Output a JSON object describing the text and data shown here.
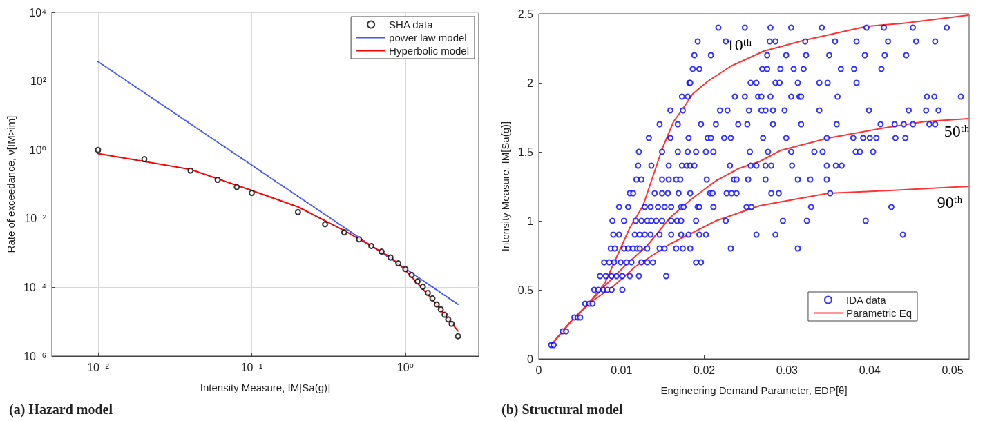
{
  "chart_data": [
    {
      "type": "scatter",
      "title": "(a) Hazard model",
      "xlabel": "Intensity Measure, IM[Sa(g)]",
      "ylabel": "Rate of exceedance, ν[IM>im]",
      "log": "xy",
      "grid": true,
      "legend": "top right",
      "xlim": [
        0.005,
        3
      ],
      "xticks": [
        {
          "value": 0.01,
          "label": "10⁻²"
        },
        {
          "value": 0.1,
          "label": "10⁻¹"
        },
        {
          "value": 1,
          "label": "10⁰"
        }
      ],
      "ylim": [
        1e-06,
        10000
      ],
      "yticks": [
        {
          "value": 1e-06,
          "label": "10⁻⁶"
        },
        {
          "value": 0.0001,
          "label": "10⁻⁴"
        },
        {
          "value": 0.01,
          "label": "10⁻²"
        },
        {
          "value": 1,
          "label": "10⁰"
        },
        {
          "value": 100,
          "label": "10²"
        },
        {
          "value": 10000,
          "label": "10⁴"
        }
      ],
      "series": [
        {
          "name": "SHA data",
          "marker": "circle",
          "color": "#000000",
          "x": [
            0.01,
            0.02,
            0.04,
            0.06,
            0.08,
            0.1,
            0.2,
            0.3,
            0.4,
            0.5,
            0.6,
            0.7,
            0.8,
            0.9,
            1.0,
            1.1,
            1.2,
            1.3,
            1.4,
            1.5,
            1.6,
            1.7,
            1.8,
            1.9,
            2.0,
            2.2
          ],
          "values": [
            1.0,
            0.54,
            0.25,
            0.135,
            0.083,
            0.056,
            0.0155,
            0.0069,
            0.004,
            0.0025,
            0.0016,
            0.0011,
            0.00074,
            0.0005,
            0.00034,
            0.00023,
            0.00015,
            0.000105,
            6.9e-05,
            4.8e-05,
            3.2e-05,
            2.3e-05,
            1.6e-05,
            1.17e-05,
            8.7e-06,
            3.8e-06
          ]
        },
        {
          "name": "power law model",
          "type": "line",
          "marker": "none",
          "line_style": "dotted",
          "color": "#4455ff",
          "x": [
            0.01,
            0.1,
            1,
            2.2
          ],
          "values": [
            370,
            0.36,
            0.00035,
            3.2e-05
          ]
        },
        {
          "name": "Hyperbolic model",
          "type": "line",
          "marker": "none",
          "line_style": "solid",
          "color": "#ff0000",
          "x": [
            0.01,
            0.04,
            0.1,
            0.2,
            0.4,
            0.6,
            0.8,
            1.0,
            1.5,
            2.2
          ],
          "values": [
            0.78,
            0.27,
            0.066,
            0.022,
            0.0045,
            0.0016,
            0.00076,
            0.00032,
            4.4e-05,
            5.4e-06
          ]
        }
      ]
    },
    {
      "type": "scatter",
      "title": "(b) Structural model",
      "xlabel": "Engineering Demand Parameter, EDP[θ]",
      "ylabel": "Intensity Measure, IM[Sa(g)]",
      "grid": false,
      "legend": "bottom right",
      "xlim": [
        0,
        0.052
      ],
      "xticks": [
        0,
        0.01,
        0.02,
        0.03,
        0.04,
        0.05
      ],
      "ylim": [
        0,
        2.5
      ],
      "yticks": [
        0,
        0.5,
        1,
        1.5,
        2,
        2.5
      ],
      "annotations": [
        "10ᵗʰ",
        "50ᵗʰ",
        "90ᵗʰ"
      ],
      "series": [
        {
          "name": "IDA data",
          "marker": "circle",
          "color": "#0000ff",
          "x": [
            0.0217,
            0.0249,
            0.028,
            0.0305,
            0.0342,
            0.0396,
            0.0417,
            0.0452,
            0.0493,
            0.0192,
            0.0226,
            0.0279,
            0.0286,
            0.0322,
            0.0358,
            0.0384,
            0.0422,
            0.0456,
            0.0479,
            0.0188,
            0.0208,
            0.0276,
            0.0299,
            0.0323,
            0.0351,
            0.0394,
            0.0418,
            0.0444,
            0.0186,
            0.0194,
            0.027,
            0.0276,
            0.0292,
            0.0308,
            0.032,
            0.0365,
            0.0381,
            0.0414,
            0.0182,
            0.0183,
            0.0256,
            0.0263,
            0.0286,
            0.0291,
            0.0313,
            0.0339,
            0.0349,
            0.0384,
            0.0173,
            0.018,
            0.0237,
            0.0249,
            0.0265,
            0.0269,
            0.028,
            0.0305,
            0.0315,
            0.0317,
            0.0361,
            0.0469,
            0.0478,
            0.051,
            0.0159,
            0.0174,
            0.0219,
            0.0228,
            0.0254,
            0.0269,
            0.0274,
            0.0283,
            0.0297,
            0.0339,
            0.0399,
            0.0447,
            0.0468,
            0.0483,
            0.0146,
            0.0168,
            0.0196,
            0.0214,
            0.0241,
            0.0252,
            0.0283,
            0.0317,
            0.036,
            0.0413,
            0.043,
            0.0441,
            0.0452,
            0.0472,
            0.0479,
            0.0133,
            0.0159,
            0.0181,
            0.0204,
            0.0208,
            0.0224,
            0.0232,
            0.0271,
            0.0299,
            0.0348,
            0.038,
            0.0392,
            0.04,
            0.0408,
            0.0431,
            0.0443,
            0.0121,
            0.0149,
            0.0168,
            0.018,
            0.019,
            0.0202,
            0.0211,
            0.0255,
            0.0277,
            0.0305,
            0.0333,
            0.0343,
            0.0383,
            0.0388,
            0.0404,
            0.012,
            0.0136,
            0.0157,
            0.0173,
            0.0179,
            0.0183,
            0.0188,
            0.0231,
            0.0256,
            0.0263,
            0.0274,
            0.0281,
            0.0306,
            0.0348,
            0.0359,
            0.0366,
            0.0118,
            0.0124,
            0.0149,
            0.0157,
            0.0166,
            0.0171,
            0.0203,
            0.0236,
            0.0239,
            0.0253,
            0.0274,
            0.0313,
            0.0328,
            0.0348,
            0.011,
            0.0114,
            0.014,
            0.0149,
            0.0156,
            0.0169,
            0.0183,
            0.0207,
            0.021,
            0.0227,
            0.0233,
            0.0239,
            0.0281,
            0.029,
            0.0352,
            0.0097,
            0.0108,
            0.0128,
            0.0135,
            0.0144,
            0.0152,
            0.016,
            0.0172,
            0.0175,
            0.0192,
            0.0194,
            0.0211,
            0.0251,
            0.0257,
            0.0329,
            0.0426,
            0.0089,
            0.0103,
            0.0117,
            0.0124,
            0.0131,
            0.0136,
            0.0142,
            0.0149,
            0.016,
            0.0167,
            0.0172,
            0.019,
            0.0226,
            0.0295,
            0.0324,
            0.0395,
            0.009,
            0.0097,
            0.0116,
            0.0122,
            0.0128,
            0.0135,
            0.0146,
            0.016,
            0.0172,
            0.0181,
            0.0194,
            0.0202,
            0.0263,
            0.0286,
            0.044,
            0.0087,
            0.0092,
            0.0103,
            0.0108,
            0.0114,
            0.0119,
            0.0122,
            0.0131,
            0.0146,
            0.0152,
            0.0166,
            0.0174,
            0.0183,
            0.0232,
            0.0313,
            0.0079,
            0.0085,
            0.0091,
            0.0099,
            0.0106,
            0.0112,
            0.0124,
            0.0131,
            0.0138,
            0.019,
            0.0196,
            0.0074,
            0.0081,
            0.0088,
            0.0094,
            0.0101,
            0.011,
            0.0121,
            0.0154,
            0.0067,
            0.0072,
            0.0078,
            0.0083,
            0.0088,
            0.0101,
            0.0056,
            0.0061,
            0.0065,
            0.0043,
            0.0047,
            0.005,
            0.0029,
            0.0033,
            0.0015,
            0.0018
          ],
          "values": [
            2.4,
            2.4,
            2.4,
            2.4,
            2.4,
            2.4,
            2.4,
            2.4,
            2.4,
            2.3,
            2.3,
            2.3,
            2.3,
            2.3,
            2.3,
            2.3,
            2.3,
            2.3,
            2.3,
            2.2,
            2.2,
            2.2,
            2.2,
            2.2,
            2.2,
            2.2,
            2.2,
            2.2,
            2.1,
            2.1,
            2.1,
            2.1,
            2.1,
            2.1,
            2.1,
            2.1,
            2.1,
            2.1,
            2.0,
            2.0,
            2.0,
            2.0,
            2.0,
            2.0,
            2.0,
            2.0,
            2.0,
            2.0,
            1.9,
            1.9,
            1.9,
            1.9,
            1.9,
            1.9,
            1.9,
            1.9,
            1.9,
            1.9,
            1.9,
            1.9,
            1.9,
            1.9,
            1.8,
            1.8,
            1.8,
            1.8,
            1.8,
            1.8,
            1.8,
            1.8,
            1.8,
            1.8,
            1.8,
            1.8,
            1.8,
            1.8,
            1.7,
            1.7,
            1.7,
            1.7,
            1.7,
            1.7,
            1.7,
            1.7,
            1.7,
            1.7,
            1.7,
            1.7,
            1.7,
            1.7,
            1.7,
            1.6,
            1.6,
            1.6,
            1.6,
            1.6,
            1.6,
            1.6,
            1.6,
            1.6,
            1.6,
            1.6,
            1.6,
            1.6,
            1.6,
            1.6,
            1.6,
            1.5,
            1.5,
            1.5,
            1.5,
            1.5,
            1.5,
            1.5,
            1.5,
            1.5,
            1.5,
            1.5,
            1.5,
            1.5,
            1.5,
            1.5,
            1.4,
            1.4,
            1.4,
            1.4,
            1.4,
            1.4,
            1.4,
            1.4,
            1.4,
            1.4,
            1.4,
            1.4,
            1.4,
            1.4,
            1.4,
            1.4,
            1.3,
            1.3,
            1.3,
            1.3,
            1.3,
            1.3,
            1.3,
            1.3,
            1.3,
            1.3,
            1.3,
            1.3,
            1.3,
            1.3,
            1.2,
            1.2,
            1.2,
            1.2,
            1.2,
            1.2,
            1.2,
            1.2,
            1.2,
            1.2,
            1.2,
            1.2,
            1.2,
            1.2,
            1.2,
            1.1,
            1.1,
            1.1,
            1.1,
            1.1,
            1.1,
            1.1,
            1.1,
            1.1,
            1.1,
            1.1,
            1.1,
            1.1,
            1.1,
            1.1,
            1.1,
            1.0,
            1.0,
            1.0,
            1.0,
            1.0,
            1.0,
            1.0,
            1.0,
            1.0,
            1.0,
            1.0,
            1.0,
            1.0,
            1.0,
            1.0,
            1.0,
            0.9,
            0.9,
            0.9,
            0.9,
            0.9,
            0.9,
            0.9,
            0.9,
            0.9,
            0.9,
            0.9,
            0.9,
            0.9,
            0.9,
            0.9,
            0.8,
            0.8,
            0.8,
            0.8,
            0.8,
            0.8,
            0.8,
            0.8,
            0.8,
            0.8,
            0.8,
            0.8,
            0.8,
            0.8,
            0.8,
            0.7,
            0.7,
            0.7,
            0.7,
            0.7,
            0.7,
            0.7,
            0.7,
            0.7,
            0.7,
            0.7,
            0.6,
            0.6,
            0.6,
            0.6,
            0.6,
            0.6,
            0.6,
            0.6,
            0.5,
            0.5,
            0.5,
            0.5,
            0.5,
            0.5,
            0.4,
            0.4,
            0.4,
            0.3,
            0.3,
            0.3,
            0.2,
            0.2,
            0.1,
            0.1
          ]
        },
        {
          "name": "Parametric Eq",
          "type": "line",
          "marker": "none",
          "line_style": "solid",
          "color": "#ff3333",
          "x": [
            0.0015,
            0.004,
            0.006,
            0.008,
            0.0095,
            0.011,
            0.0126,
            0.0149,
            0.0163,
            0.0175,
            0.0186,
            0.0204,
            0.0232,
            0.0272,
            0.0322,
            0.0397,
            0.0439,
            0.0519
          ],
          "values": [
            0.1,
            0.28,
            0.4,
            0.55,
            0.75,
            0.95,
            1.11,
            1.52,
            1.72,
            1.82,
            1.92,
            2.01,
            2.12,
            2.23,
            2.31,
            2.41,
            2.43,
            2.49
          ]
        },
        {
          "type": "line",
          "marker": "none",
          "line_style": "solid",
          "color": "#ff3333",
          "x": [
            0.0015,
            0.004,
            0.006,
            0.008,
            0.0105,
            0.0131,
            0.0158,
            0.0183,
            0.0214,
            0.0242,
            0.0267,
            0.0292,
            0.035,
            0.0414,
            0.0467,
            0.0519
          ],
          "values": [
            0.1,
            0.28,
            0.4,
            0.53,
            0.68,
            0.82,
            1.02,
            1.15,
            1.29,
            1.38,
            1.43,
            1.51,
            1.6,
            1.67,
            1.72,
            1.74
          ]
        },
        {
          "type": "line",
          "marker": "none",
          "line_style": "solid",
          "color": "#ff3333",
          "x": [
            0.0015,
            0.004,
            0.0065,
            0.0089,
            0.0117,
            0.0158,
            0.0214,
            0.0267,
            0.035,
            0.0425,
            0.0519
          ],
          "values": [
            0.1,
            0.28,
            0.42,
            0.52,
            0.67,
            0.83,
            1.0,
            1.11,
            1.2,
            1.22,
            1.25
          ]
        }
      ]
    }
  ]
}
